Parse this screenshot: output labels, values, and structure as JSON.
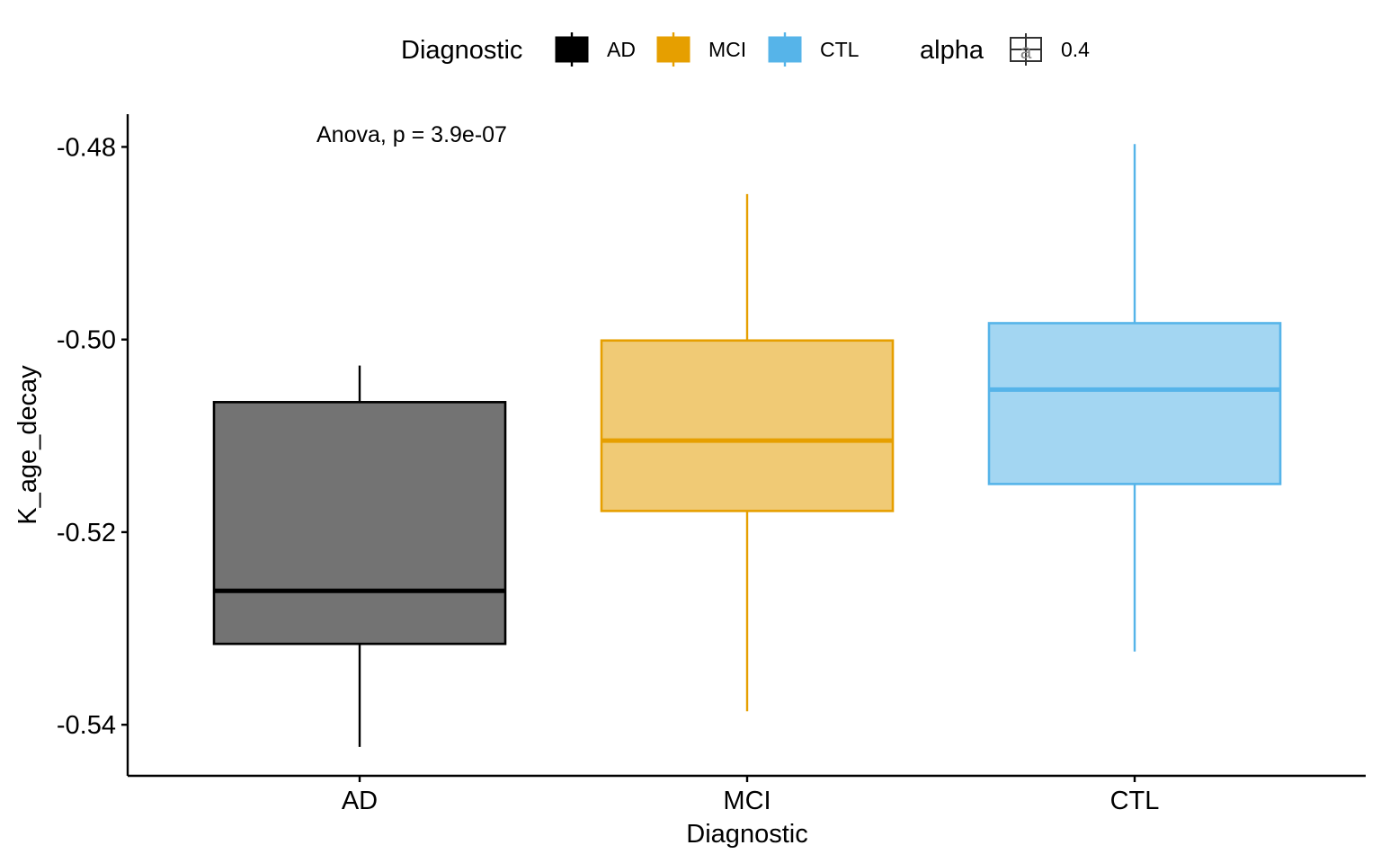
{
  "chart_data": {
    "type": "box",
    "xlabel": "Diagnostic",
    "ylabel": "K_age_decay",
    "categories": [
      "AD",
      "MCI",
      "CTL"
    ],
    "ylim": [
      -0.5453,
      -0.4766
    ],
    "yticks": [
      -0.48,
      -0.5,
      -0.52,
      -0.54
    ],
    "ytick_labels": [
      "-0.48",
      "-0.50",
      "-0.52",
      "-0.54"
    ],
    "grid": false,
    "annotation": "Anova, p = 3.9e-07",
    "boxes": [
      {
        "category": "AD",
        "whisker_low": -0.5423,
        "q1": -0.5316,
        "median": -0.5261,
        "q3": -0.5065,
        "whisker_high": -0.5027,
        "color": "#000000",
        "fill": "#737373"
      },
      {
        "category": "MCI",
        "whisker_low": -0.5386,
        "q1": -0.5178,
        "median": -0.5105,
        "q3": -0.5001,
        "whisker_high": -0.4849,
        "color": "#E69F00",
        "fill": "#F0CA75"
      },
      {
        "category": "CTL",
        "whisker_low": -0.5324,
        "q1": -0.515,
        "median": -0.5052,
        "q3": -0.4983,
        "whisker_high": -0.4797,
        "color": "#56B4E9",
        "fill": "#A3D6F2"
      }
    ],
    "legend": {
      "position": "top",
      "groups": [
        {
          "title": "Diagnostic",
          "items": [
            {
              "label": "AD",
              "color": "#000000"
            },
            {
              "label": "MCI",
              "color": "#E69F00"
            },
            {
              "label": "CTL",
              "color": "#56B4E9"
            }
          ]
        },
        {
          "title": "alpha",
          "items": [
            {
              "label": "0.4",
              "color": "#333333",
              "key_glyph": "a"
            }
          ]
        }
      ]
    }
  }
}
